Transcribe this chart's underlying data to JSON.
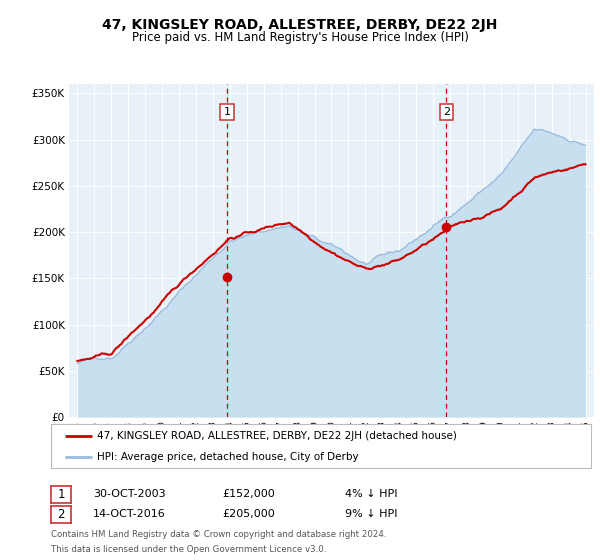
{
  "title": "47, KINGSLEY ROAD, ALLESTREE, DERBY, DE22 2JH",
  "subtitle": "Price paid vs. HM Land Registry's House Price Index (HPI)",
  "legend_house": "47, KINGSLEY ROAD, ALLESTREE, DERBY, DE22 2JH (detached house)",
  "legend_hpi": "HPI: Average price, detached house, City of Derby",
  "footnote1": "Contains HM Land Registry data © Crown copyright and database right 2024.",
  "footnote2": "This data is licensed under the Open Government Licence v3.0.",
  "transaction1_date": "30-OCT-2003",
  "transaction1_price": "£152,000",
  "transaction1_hpi": "4% ↓ HPI",
  "transaction2_date": "14-OCT-2016",
  "transaction2_price": "£205,000",
  "transaction2_hpi": "9% ↓ HPI",
  "xlim_min": 1994.5,
  "xlim_max": 2025.5,
  "ylim_min": 0,
  "ylim_max": 360000,
  "yticks": [
    0,
    50000,
    100000,
    150000,
    200000,
    250000,
    300000,
    350000
  ],
  "ytick_labels": [
    "£0",
    "£50K",
    "£100K",
    "£150K",
    "£200K",
    "£250K",
    "£300K",
    "£350K"
  ],
  "marker1_x": 2003.83,
  "marker1_y": 152000,
  "marker2_x": 2016.79,
  "marker2_y": 205000,
  "vline1_x": 2003.83,
  "vline2_x": 2016.79,
  "house_color": "#cc0000",
  "hpi_line_color": "#99bbdd",
  "hpi_fill_color": "#c8dff0",
  "vline_color": "#cc0000",
  "marker_color": "#cc0000",
  "plot_bg_color": "#e8f0f8",
  "grid_color": "#ffffff",
  "box_edge_color": "#cc3333",
  "label_fontsize": 8.5,
  "title_fontsize": 10,
  "subtitle_fontsize": 8.5
}
